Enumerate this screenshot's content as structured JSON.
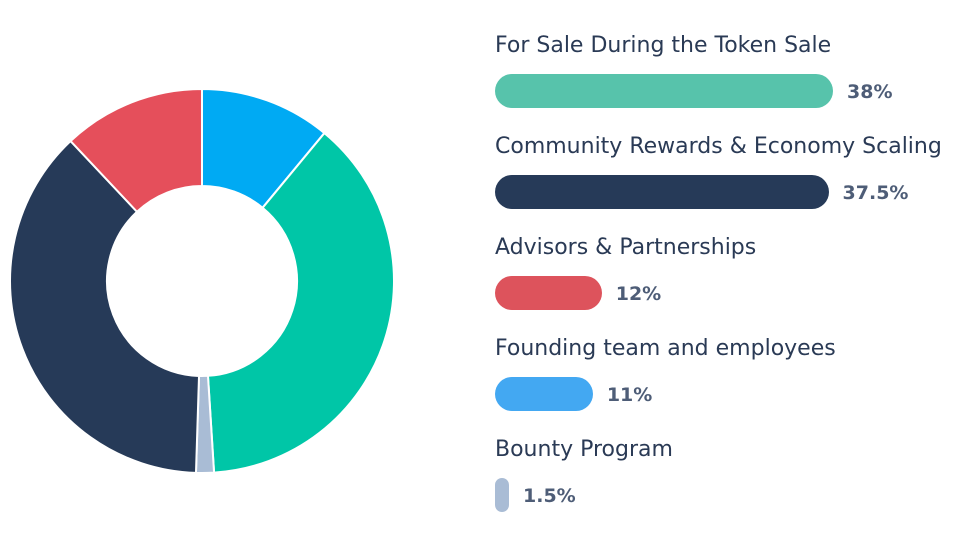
{
  "chart_data": {
    "type": "pie",
    "series": [
      {
        "name": "For Sale During the Token Sale",
        "value": 38,
        "value_label": "38%",
        "color": "#00c6a7",
        "legend_color": "#57c3ab"
      },
      {
        "name": "Community Rewards & Economy Scaling",
        "value": 37.5,
        "value_label": "37.5%",
        "color": "#263a58",
        "legend_color": "#263a58"
      },
      {
        "name": "Advisors & Partnerships",
        "value": 12,
        "value_label": "12%",
        "color": "#e54f5b",
        "legend_color": "#dd535c"
      },
      {
        "name": "Founding team and employees",
        "value": 11,
        "value_label": "11%",
        "color": "#00aaf3",
        "legend_color": "#43a8f2"
      },
      {
        "name": "Bounty Program",
        "value": 1.5,
        "value_label": "1.5%",
        "color": "#a9bcd5",
        "legend_color": "#a9bcd5"
      }
    ],
    "slice_order": [
      "Founding team and employees",
      "For Sale During the Token Sale",
      "Bounty Program",
      "Community Rewards & Economy Scaling",
      "Advisors & Partnerships"
    ],
    "hole": "donut",
    "legend": "right"
  }
}
